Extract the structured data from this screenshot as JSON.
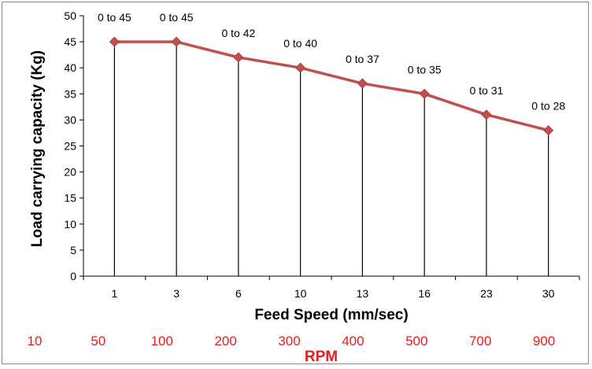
{
  "chart_data": {
    "type": "line",
    "title": "",
    "xlabel": "Feed Speed (mm/sec)",
    "ylabel": "Load carrying capacity (Kg)",
    "secondary_xlabel": "RPM",
    "categories": [
      "1",
      "3",
      "6",
      "10",
      "13",
      "16",
      "23",
      "30"
    ],
    "series": [
      {
        "values": [
          45,
          45,
          42,
          40,
          37,
          35,
          31,
          28
        ],
        "data_labels": [
          "0 to 45",
          "0 to 45",
          "0 to 42",
          "0 to 40",
          "0 to 37",
          "0 to 35",
          "0 to 31",
          "0 to 28"
        ]
      }
    ],
    "ylim": [
      0,
      50
    ],
    "yticks": [
      0,
      5,
      10,
      15,
      20,
      25,
      30,
      35,
      40,
      45,
      50
    ],
    "rpm_labels": [
      "10",
      "50",
      "100",
      "200",
      "300",
      "400",
      "500",
      "700",
      "900"
    ],
    "drop_lines": true,
    "grid": false,
    "colors": {
      "line": "#c0504d",
      "marker": "#c0504d",
      "drop_line": "#000000",
      "axis": "#000000",
      "rpm_text": "#e02020",
      "frame": "#8a8a8a"
    }
  }
}
